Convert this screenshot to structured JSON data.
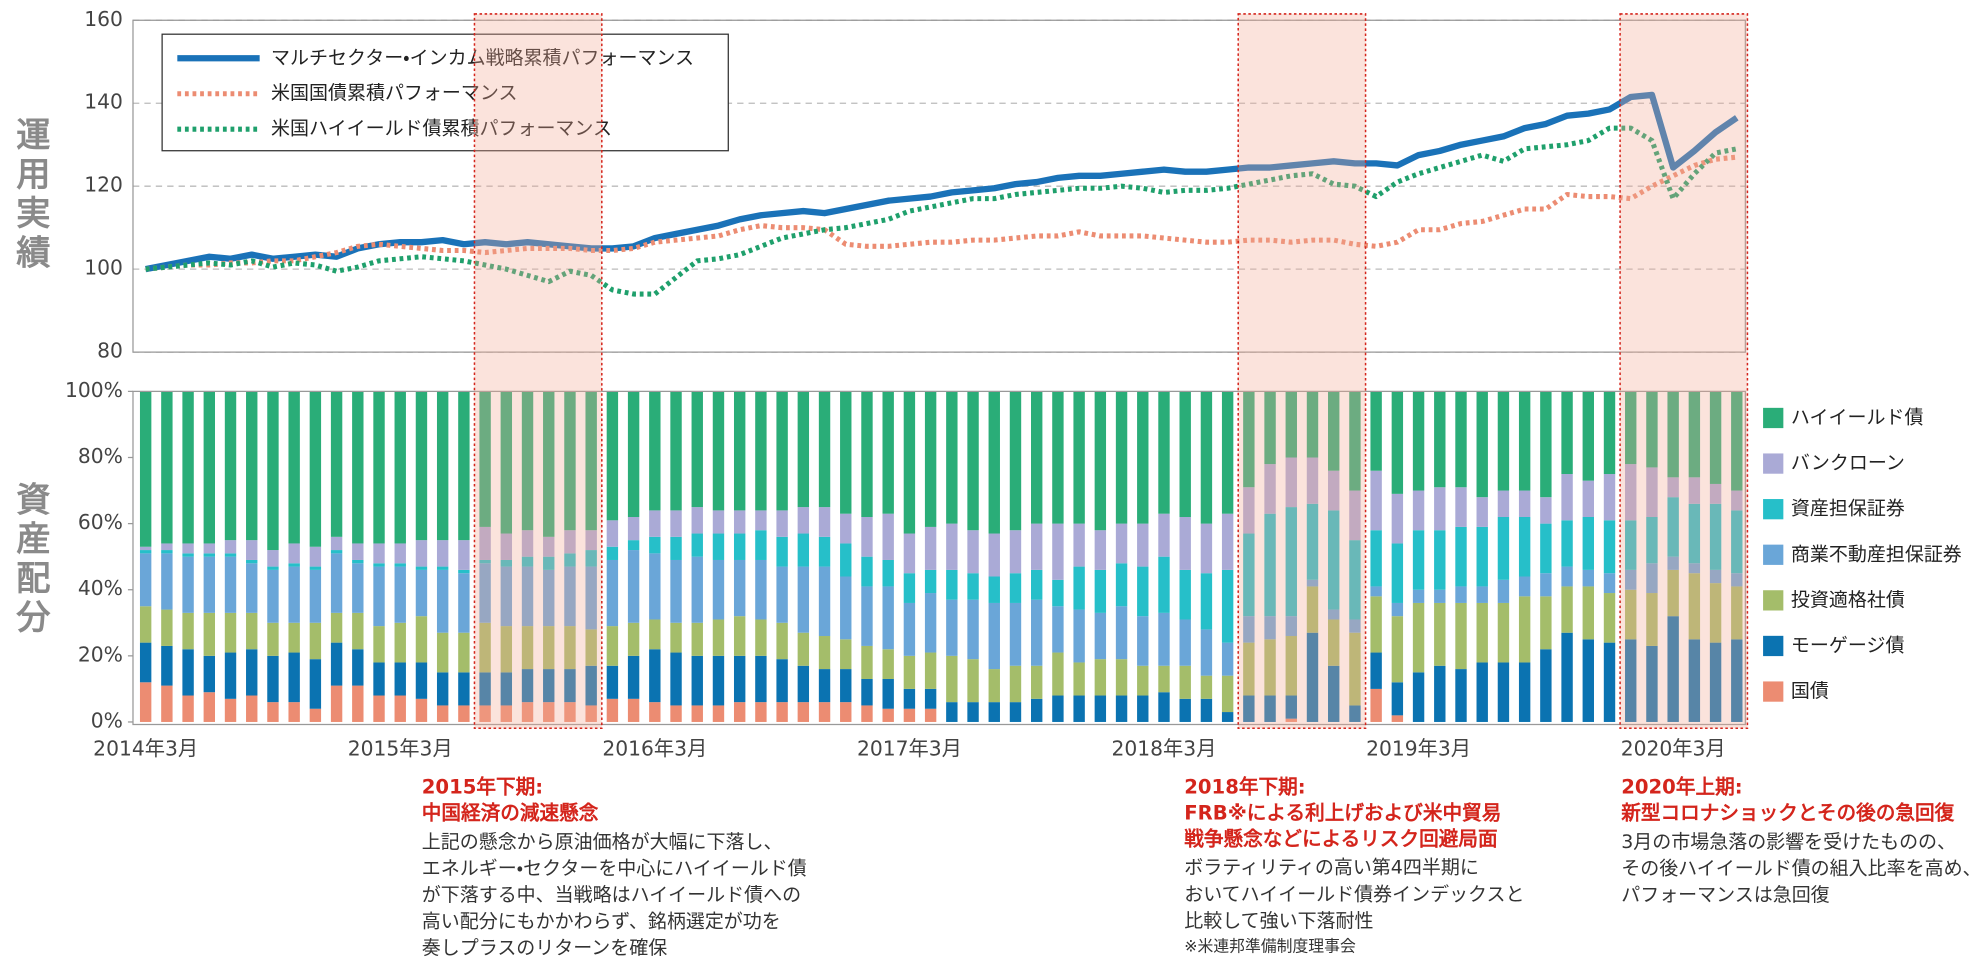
{
  "chart_data": [
    {
      "type": "line",
      "ylabel": "運用実績",
      "ylim": [
        80,
        160
      ],
      "yticks": [
        80,
        100,
        120,
        140,
        160
      ],
      "grid": true,
      "legend": "upper left",
      "series": [
        {
          "name": "マルチセクター・インカム戦略累積パフォーマンス",
          "color": "#1a72b8",
          "style": "solid",
          "values": [
            100,
            101,
            102,
            103,
            102.5,
            103.5,
            102.5,
            103,
            103.5,
            103,
            105,
            106,
            106.5,
            106.5,
            107,
            106,
            106.5,
            106,
            106.5,
            106,
            105.5,
            105,
            105,
            105.5,
            107.5,
            108.5,
            109.5,
            110.5,
            112,
            113,
            113.5,
            114,
            113.5,
            114.5,
            115.5,
            116.5,
            117,
            117.5,
            118.5,
            119,
            119.5,
            120.5,
            121,
            122,
            122.5,
            122.5,
            123,
            123.5,
            124,
            123.5,
            123.5,
            124,
            124.5,
            124.5,
            125,
            125.5,
            126,
            125.5,
            125.5,
            125,
            127.5,
            128.5,
            130,
            131,
            132,
            134,
            135,
            137,
            137.5,
            138.5,
            141.5,
            142,
            124.5,
            128.5,
            133,
            136.5
          ]
        },
        {
          "name": "米国国債累積パフォーマンス",
          "color": "#ec8c72",
          "style": "dotted",
          "values": [
            100,
            100.5,
            101,
            101,
            101.5,
            101.5,
            102,
            102,
            103,
            104,
            105.5,
            106,
            105.5,
            105,
            104.5,
            104.5,
            104,
            104.5,
            105,
            105,
            105,
            104.5,
            104.5,
            105,
            106.5,
            107,
            107.5,
            108,
            109.5,
            110.5,
            110,
            110,
            109.5,
            106,
            105.5,
            105.5,
            106,
            106.5,
            106.5,
            107,
            107,
            107.5,
            108,
            108,
            109,
            108,
            108,
            108,
            107.5,
            107,
            106.5,
            106.5,
            107,
            107,
            106.5,
            107,
            107,
            106,
            105.5,
            106.5,
            109.5,
            109.5,
            111,
            111.5,
            113,
            114.5,
            114.5,
            118,
            117.5,
            117.5,
            117,
            120,
            122.5,
            125,
            126.5,
            127
          ]
        },
        {
          "name": "米国ハイイールド債累積パフォーマンス",
          "color": "#1fa06c",
          "style": "dotted",
          "values": [
            100,
            100.5,
            101,
            101.5,
            101,
            102,
            100.5,
            101.5,
            101,
            99.5,
            100.5,
            102,
            102.5,
            103,
            102.5,
            102,
            101,
            100,
            98.5,
            97,
            99.5,
            98.5,
            95,
            94,
            94,
            98,
            102,
            102.5,
            103.5,
            105.5,
            107.5,
            108.5,
            109.5,
            110,
            111,
            112,
            114,
            115,
            116,
            117,
            117,
            118,
            118.5,
            119,
            119.5,
            119.5,
            120,
            119.5,
            118.5,
            119,
            119,
            119.5,
            120.5,
            121.5,
            122.5,
            123,
            120.5,
            120,
            117.5,
            121,
            123,
            124.5,
            126,
            127.5,
            126,
            129,
            129.5,
            130,
            131,
            134,
            134,
            131,
            117,
            123,
            128,
            129
          ]
        }
      ]
    },
    {
      "type": "stacked_bar",
      "ylabel": "資産配分",
      "ylim": [
        0,
        100
      ],
      "yticks": [
        {
          "value": 0,
          "label": "0%"
        },
        {
          "value": 20,
          "label": "20%"
        },
        {
          "value": 40,
          "label": "40%"
        },
        {
          "value": 60,
          "label": "60%"
        },
        {
          "value": 80,
          "label": "80%"
        },
        {
          "value": 100,
          "label": "100%"
        }
      ],
      "legend": "right",
      "categories": [
        "2014年3月",
        null,
        null,
        null,
        null,
        null,
        null,
        null,
        null,
        null,
        null,
        null,
        "2015年3月",
        null,
        null,
        null,
        null,
        null,
        null,
        null,
        null,
        null,
        null,
        null,
        "2016年3月",
        null,
        null,
        null,
        null,
        null,
        null,
        null,
        null,
        null,
        null,
        null,
        "2017年3月",
        null,
        null,
        null,
        null,
        null,
        null,
        null,
        null,
        null,
        null,
        null,
        "2018年3月",
        null,
        null,
        null,
        null,
        null,
        null,
        null,
        null,
        null,
        null,
        null,
        "2019年3月",
        null,
        null,
        null,
        null,
        null,
        null,
        null,
        null,
        null,
        null,
        null,
        "2020年3月",
        null,
        null,
        null
      ],
      "series": [
        {
          "name": "国債",
          "color": "#ec8c72",
          "values": [
            12,
            11,
            8,
            9,
            7,
            8,
            6,
            6,
            4,
            11,
            11,
            8,
            8,
            7,
            5,
            5,
            5,
            5,
            6,
            6,
            6,
            5,
            7,
            7,
            6,
            5,
            5,
            5,
            6,
            6,
            6,
            6,
            6,
            6,
            5,
            4,
            4,
            4,
            0,
            0,
            0,
            0,
            0,
            0,
            0,
            0,
            0,
            0,
            0,
            0,
            0,
            0,
            0,
            0,
            1,
            0,
            0,
            0,
            10,
            2,
            0,
            0,
            0,
            0,
            0,
            0,
            0,
            0,
            0,
            0,
            0,
            0,
            0,
            0,
            0,
            0
          ]
        },
        {
          "name": "モーゲージ債",
          "color": "#0b73b1",
          "values": [
            12,
            12,
            14,
            11,
            14,
            14,
            14,
            15,
            15,
            13,
            11,
            10,
            10,
            11,
            10,
            10,
            10,
            10,
            10,
            10,
            10,
            12,
            10,
            13,
            16,
            16,
            15,
            15,
            14,
            14,
            13,
            11,
            10,
            10,
            8,
            9,
            6,
            6,
            6,
            6,
            6,
            6,
            7,
            8,
            8,
            8,
            8,
            8,
            9,
            7,
            7,
            3,
            8,
            8,
            7,
            27,
            17,
            5,
            11,
            10,
            15,
            17,
            16,
            18,
            18,
            18,
            22,
            27,
            25,
            24,
            25,
            23,
            32,
            25,
            24,
            25
          ]
        },
        {
          "name": "投資適格社債",
          "color": "#a4bd6a",
          "values": [
            11,
            11,
            11,
            13,
            12,
            11,
            10,
            9,
            11,
            9,
            11,
            11,
            12,
            14,
            12,
            12,
            15,
            14,
            13,
            13,
            13,
            11,
            12,
            10,
            9,
            9,
            10,
            11,
            12,
            11,
            11,
            10,
            10,
            9,
            10,
            9,
            10,
            11,
            14,
            13,
            10,
            11,
            10,
            13,
            10,
            11,
            11,
            9,
            8,
            10,
            7,
            11,
            16,
            17,
            18,
            14,
            14,
            22,
            17,
            20,
            21,
            19,
            20,
            18,
            18,
            20,
            16,
            14,
            16,
            15,
            15,
            16,
            14,
            20,
            18,
            16
          ]
        },
        {
          "name": "商業不動産担保証券",
          "color": "#6aa6d8",
          "values": [
            16,
            17,
            17,
            17,
            17,
            15,
            16,
            17,
            16,
            18,
            15,
            18,
            17,
            14,
            19,
            18,
            18,
            18,
            18,
            17,
            18,
            19,
            20,
            22,
            20,
            19,
            20,
            18,
            17,
            18,
            17,
            20,
            21,
            19,
            18,
            19,
            16,
            18,
            17,
            18,
            20,
            19,
            20,
            14,
            16,
            14,
            16,
            15,
            16,
            14,
            14,
            10,
            8,
            7,
            6,
            2,
            3,
            4,
            3,
            4,
            4,
            4,
            5,
            5,
            7,
            6,
            7,
            6,
            5,
            6,
            6,
            9,
            4,
            3,
            4,
            4
          ]
        },
        {
          "name": "資産担保証券",
          "color": "#26bfc9",
          "values": [
            1,
            1,
            1,
            1,
            1,
            1,
            1,
            1,
            1,
            1,
            1,
            1,
            1,
            1,
            1,
            1,
            1,
            2,
            3,
            4,
            4,
            5,
            4,
            3,
            5,
            7,
            7,
            8,
            8,
            9,
            9,
            10,
            9,
            10,
            9,
            8,
            9,
            7,
            9,
            8,
            8,
            9,
            9,
            8,
            13,
            13,
            13,
            15,
            17,
            15,
            17,
            22,
            25,
            31,
            33,
            23,
            30,
            24,
            17,
            18,
            18,
            18,
            18,
            18,
            19,
            18,
            15,
            14,
            16,
            16,
            15,
            14,
            18,
            18,
            20,
            19
          ]
        },
        {
          "name": "バンクローン",
          "color": "#aaaad6",
          "values": [
            1,
            2,
            3,
            3,
            4,
            6,
            5,
            6,
            6,
            4,
            5,
            6,
            6,
            8,
            8,
            9,
            10,
            8,
            8,
            6,
            7,
            6,
            8,
            7,
            8,
            8,
            8,
            7,
            7,
            6,
            8,
            8,
            9,
            9,
            12,
            14,
            12,
            13,
            14,
            13,
            13,
            13,
            14,
            17,
            13,
            12,
            12,
            13,
            13,
            16,
            15,
            17,
            14,
            15,
            15,
            14,
            12,
            15,
            18,
            15,
            12,
            13,
            12,
            9,
            8,
            8,
            8,
            14,
            11,
            14,
            17,
            15,
            6,
            8,
            6,
            6
          ]
        },
        {
          "name": "ハイイールド債",
          "color": "#2aad78",
          "values": [
            47,
            46,
            46,
            46,
            45,
            45,
            48,
            46,
            47,
            44,
            46,
            46,
            46,
            45,
            45,
            45,
            41,
            43,
            42,
            44,
            42,
            42,
            39,
            38,
            36,
            36,
            35,
            36,
            36,
            36,
            36,
            35,
            35,
            37,
            38,
            37,
            43,
            41,
            40,
            42,
            43,
            42,
            40,
            40,
            40,
            42,
            40,
            40,
            37,
            38,
            40,
            37,
            29,
            22,
            20,
            20,
            24,
            30,
            24,
            31,
            30,
            29,
            29,
            32,
            30,
            30,
            32,
            25,
            27,
            25,
            22,
            23,
            26,
            26,
            28,
            30
          ]
        }
      ]
    }
  ],
  "annotations": [
    {
      "span": [
        16,
        21
      ],
      "title": [
        "2015年下期:",
        "中国経済の減速懸念"
      ],
      "text": [
        "上記の懸念から原油価格が大幅に下落し、",
        "エネルギー・セクターを中心にハイイールド債",
        "が下落する中、当戦略はハイイールド債への",
        "高い配分にもかかわらず、銘柄選定が功を",
        "奏しプラスのリターンを確保"
      ]
    },
    {
      "span": [
        52,
        57
      ],
      "title": [
        "2018年下期:",
        "FRB※による利上げおよび米中貿易",
        "戦争懸念などによるリスク回避局面"
      ],
      "text": [
        "ボラティリティの高い第4四半期に",
        "おいてハイイールド債券インデックスと",
        "比較して強い下落耐性"
      ],
      "note": "※米連邦準備制度理事会"
    },
    {
      "span": [
        70,
        75
      ],
      "title": [
        "2020年上期:",
        "新型コロナショックとその後の急回復"
      ],
      "text": [
        "3月の市場急落の影響を受けたものの、",
        "その後ハイイールド債の組入比率を高め、",
        "パフォーマンスは急回復"
      ]
    }
  ]
}
